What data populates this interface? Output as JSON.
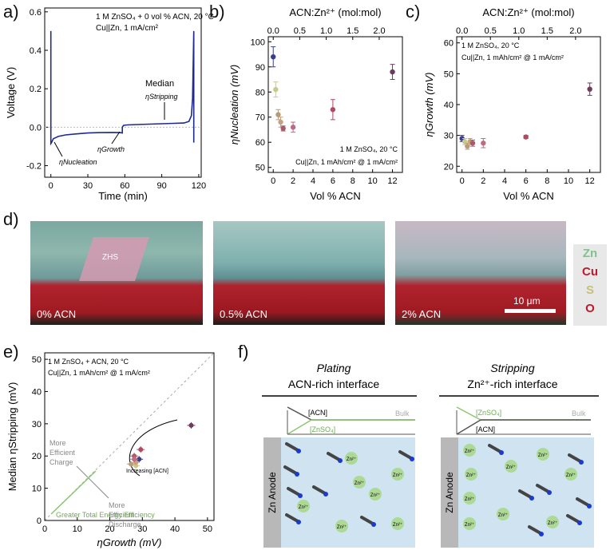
{
  "panel_labels": {
    "a": "a)",
    "b": "b)",
    "c": "c)",
    "d": "d)",
    "e": "e)",
    "f": "f)"
  },
  "colors": {
    "navy": "#3b3f8a",
    "olive": "#c9c98a",
    "tan": "#b89b78",
    "pink": "#c06a80",
    "maroon": "#6e3a5e",
    "dark_red": "#8a2a40",
    "green": "#8cc870",
    "grey": "#888888",
    "blue_line": "#1f2a8c"
  },
  "chart_data": [
    {
      "id": "a",
      "type": "line",
      "legend_lines": [
        "1 M ZnSO₄ + 0 vol % ACN, 20 °C",
        "Cu||Zn, 1 mA/cm²"
      ],
      "xlabel": "Time (min)",
      "ylabel": "Voltage (V)",
      "xlim": [
        -5,
        122
      ],
      "ylim": [
        -0.26,
        0.62
      ],
      "xticks": [
        "0",
        "30",
        "60",
        "90",
        "120"
      ],
      "yticks": [
        "-0.2",
        "0.0",
        "0.2",
        "0.4",
        "0.6"
      ],
      "annotations": {
        "median": "Median",
        "stripping": "ηStripping",
        "growth": "ηGrowth",
        "nucleation": "ηNucleation"
      },
      "series": [
        {
          "x": [
            0,
            0,
            0.5,
            2,
            6,
            12,
            20,
            30,
            40,
            50,
            56,
            58,
            58,
            59,
            62,
            70,
            80,
            90,
            100,
            108,
            112,
            114,
            115,
            116,
            116
          ],
          "y": [
            0.5,
            -0.085,
            -0.08,
            -0.06,
            -0.048,
            -0.04,
            -0.035,
            -0.03,
            -0.028,
            -0.027,
            -0.028,
            -0.03,
            0.0,
            0.01,
            0.012,
            0.014,
            0.016,
            0.018,
            0.02,
            0.022,
            0.03,
            0.06,
            0.15,
            0.5,
            -0.08
          ]
        }
      ]
    },
    {
      "id": "b",
      "type": "scatter",
      "xlabel": "Vol % ACN",
      "ylabel": "ηNucleation (mV)",
      "top_label": "ACN:Zn²⁺ (mol:mol)",
      "legend_lines": [
        "1 M ZnSO₄, 20 °C",
        "Cu||Zn, 1 mAh/cm² @ 1 mA/cm²"
      ],
      "xlim": [
        -0.5,
        13
      ],
      "ylim": [
        48,
        102
      ],
      "xticks": [
        "0",
        "2",
        "4",
        "6",
        "8",
        "10",
        "12"
      ],
      "yticks": [
        "50",
        "60",
        "70",
        "80",
        "90",
        "100"
      ],
      "top_ticks": [
        "0.0",
        "0.5",
        "1.0",
        "1.5",
        "2.0"
      ],
      "points": [
        {
          "x": 0,
          "y": 94,
          "err": 4,
          "color": "#3b3f8a"
        },
        {
          "x": 0.25,
          "y": 81,
          "err": 3,
          "color": "#c9c98a"
        },
        {
          "x": 0.5,
          "y": 71,
          "err": 2,
          "color": "#b89b78"
        },
        {
          "x": 0.75,
          "y": 68,
          "err": 2,
          "color": "#c8a07c"
        },
        {
          "x": 1,
          "y": 65.5,
          "err": 1,
          "color": "#a85a6a"
        },
        {
          "x": 2,
          "y": 66,
          "err": 2,
          "color": "#c06a80"
        },
        {
          "x": 6,
          "y": 73,
          "err": 4,
          "color": "#b04a60"
        },
        {
          "x": 12,
          "y": 88,
          "err": 3,
          "color": "#6e3a5e"
        }
      ]
    },
    {
      "id": "c",
      "type": "scatter",
      "xlabel": "Vol % ACN",
      "ylabel": "ηGrowth (mV)",
      "top_label": "ACN:Zn²⁺ (mol:mol)",
      "legend_lines": [
        "1 M ZnSO₄, 20 °C",
        "Cu||Zn, 1 mAh/cm² @ 1 mA/cm²"
      ],
      "xlim": [
        -0.5,
        13
      ],
      "ylim": [
        18,
        62
      ],
      "xticks": [
        "0",
        "2",
        "4",
        "6",
        "8",
        "10",
        "12"
      ],
      "yticks": [
        "20",
        "30",
        "40",
        "50",
        "60"
      ],
      "top_ticks": [
        "0.0",
        "0.5",
        "1.0",
        "1.5",
        "2.0"
      ],
      "points": [
        {
          "x": 0,
          "y": 29,
          "err": 1,
          "color": "#3b3f8a"
        },
        {
          "x": 0.25,
          "y": 28,
          "err": 1,
          "color": "#c9c98a"
        },
        {
          "x": 0.5,
          "y": 26.5,
          "err": 1,
          "color": "#b89b78"
        },
        {
          "x": 0.75,
          "y": 28,
          "err": 1,
          "color": "#c8a07c"
        },
        {
          "x": 1,
          "y": 27.5,
          "err": 1,
          "color": "#a85a6a"
        },
        {
          "x": 2,
          "y": 27.5,
          "err": 1.5,
          "color": "#c06a80"
        },
        {
          "x": 6,
          "y": 29.5,
          "err": 0.5,
          "color": "#b04a60"
        },
        {
          "x": 12,
          "y": 45,
          "err": 2,
          "color": "#6e3a5e"
        }
      ]
    },
    {
      "id": "e",
      "type": "scatter",
      "xlabel": "ηGrowth (mV)",
      "ylabel": "Median ηStripping (mV)",
      "legend_lines": [
        "1 M ZnSO₄ + ACN, 20 °C",
        "Cu||Zn, 1 mAh/cm² @ 1 mA/cm²"
      ],
      "xlim": [
        0,
        52
      ],
      "ylim": [
        0,
        52
      ],
      "xticks": [
        "0",
        "10",
        "20",
        "30",
        "40",
        "50"
      ],
      "yticks": [
        "0",
        "10",
        "20",
        "30",
        "40",
        "50"
      ],
      "annotations": {
        "charge": [
          "More",
          "Efficient",
          "Charge"
        ],
        "discharge": [
          "More",
          "Efficient",
          "Discharge"
        ],
        "energy": "Greater Total Energy Efficiency",
        "increasing": "Increasing [ACN]"
      },
      "points": [
        {
          "x": 29,
          "y": 19,
          "color": "#3b3f8a"
        },
        {
          "x": 28,
          "y": 17,
          "color": "#c9c98a"
        },
        {
          "x": 26.5,
          "y": 17.5,
          "color": "#b89b78"
        },
        {
          "x": 28,
          "y": 18,
          "color": "#c8a07c"
        },
        {
          "x": 27.5,
          "y": 20,
          "color": "#a85a6a"
        },
        {
          "x": 27.5,
          "y": 19,
          "color": "#c06a80"
        },
        {
          "x": 29.5,
          "y": 22,
          "color": "#b04a60"
        },
        {
          "x": 45,
          "y": 29.5,
          "color": "#6e3a5e"
        }
      ]
    }
  ],
  "panel_d": {
    "images": [
      {
        "label": "0% ACN",
        "annotation": "ZHS"
      },
      {
        "label": "0.5% ACN",
        "annotation": ""
      },
      {
        "label": "2% ACN",
        "annotation": ""
      }
    ],
    "scale_bar": "10 μm",
    "legend": [
      {
        "label": "Zn",
        "color": "#7fc48a"
      },
      {
        "label": "Cu",
        "color": "#c0192a"
      },
      {
        "label": "S",
        "color": "#c8c07a"
      },
      {
        "label": "O",
        "color": "#c0192a"
      }
    ]
  },
  "panel_f": {
    "plating": {
      "title": "Plating",
      "subtitle": "ACN-rich interface",
      "top_line": "[ACN]",
      "bottom_line": "[ZnSO₄]",
      "bulk": "Bulk",
      "anode": "Zn Anode"
    },
    "stripping": {
      "title": "Stripping",
      "subtitle": "Zn²⁺-rich interface",
      "top_line": "[ZnSO₄]",
      "bottom_line": "[ACN]",
      "bulk": "Bulk",
      "anode": "Zn Anode"
    },
    "ion_label": "Zn²⁺"
  }
}
